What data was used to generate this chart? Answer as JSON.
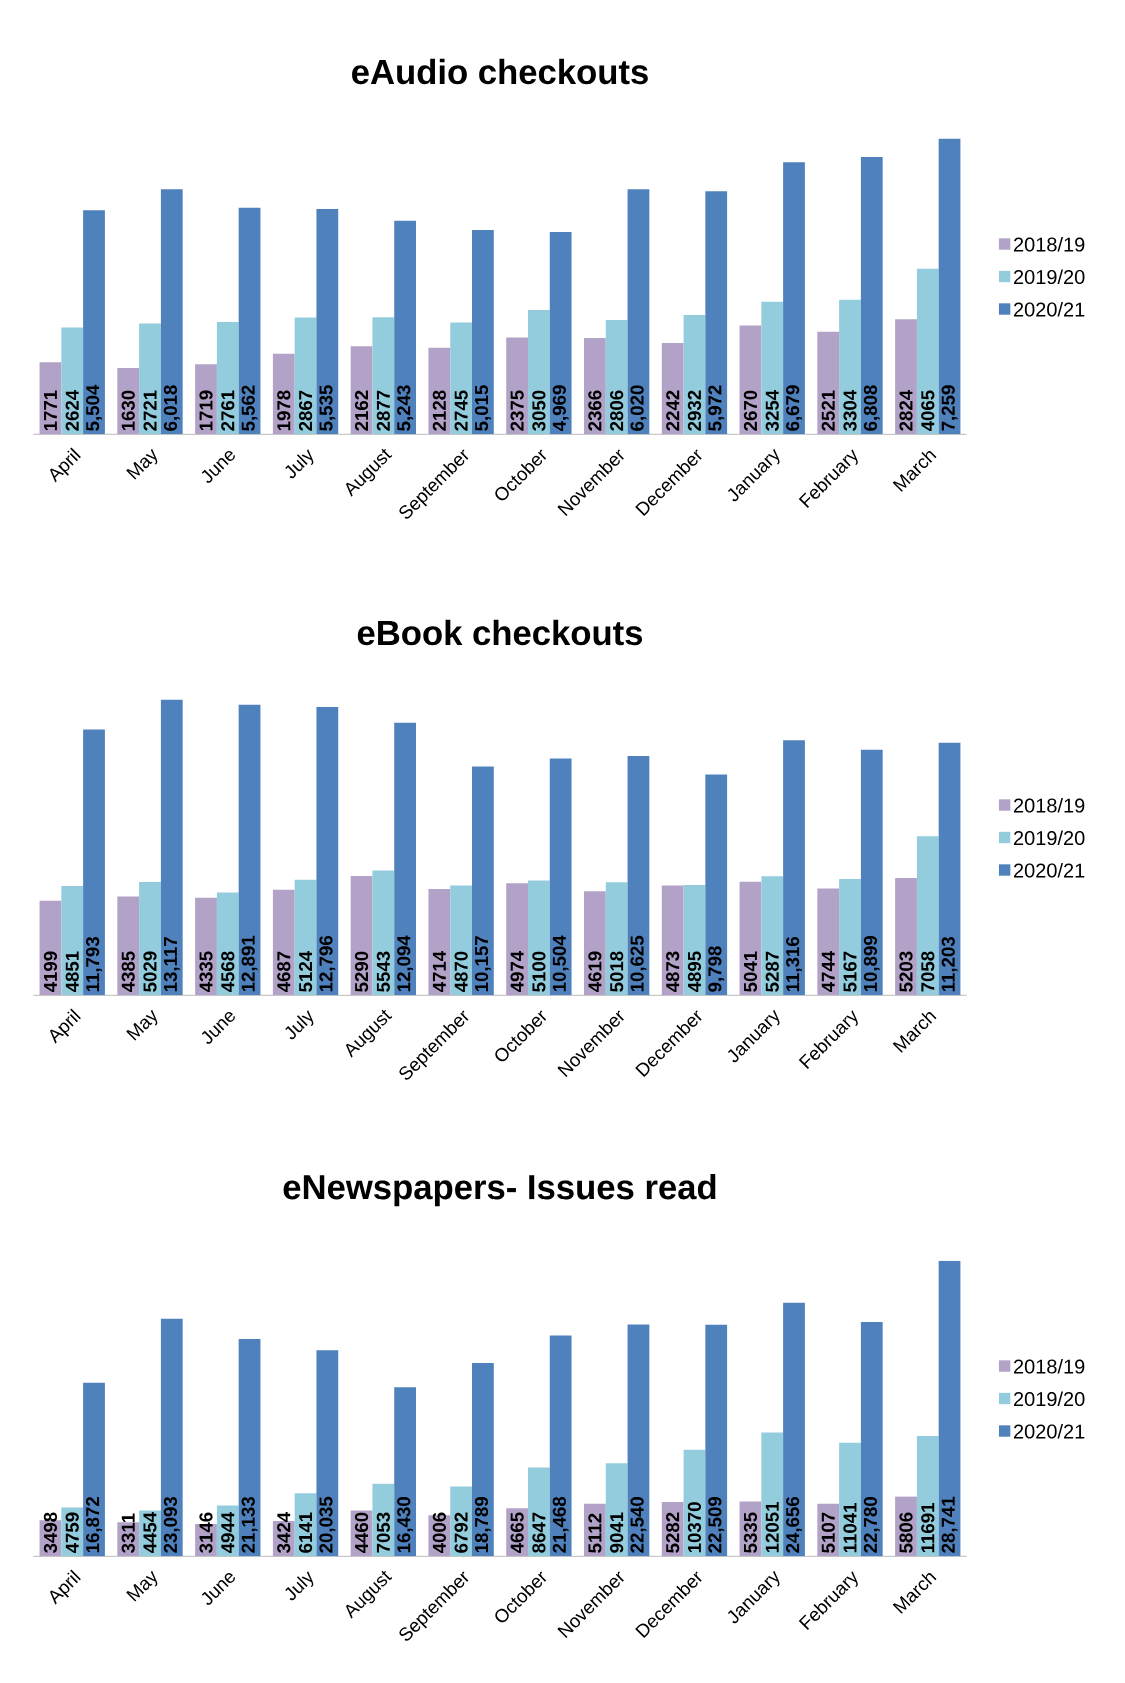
{
  "chart_data": [
    {
      "type": "bar",
      "title": "eAudio checkouts",
      "legend": "right",
      "tick_labels": "x",
      "categories": [
        "April",
        "May",
        "June",
        "July",
        "August",
        "September",
        "October",
        "November",
        "December",
        "January",
        "February",
        "March"
      ],
      "series": [
        {
          "name": "2018/19",
          "color": "#b3a2c7",
          "values": [
            1771,
            1630,
            1719,
            1978,
            2162,
            2128,
            2375,
            2366,
            2242,
            2670,
            2521,
            2824
          ],
          "value_labels": [
            "1771",
            "1630",
            "1719",
            "1978",
            "2162",
            "2128",
            "2375",
            "2366",
            "2242",
            "2670",
            "2521",
            "2824"
          ]
        },
        {
          "name": "2019/20",
          "color": "#93cddd",
          "values": [
            2624,
            2721,
            2761,
            2867,
            2877,
            2745,
            3050,
            2806,
            2932,
            3254,
            3304,
            4065
          ],
          "value_labels": [
            "2624",
            "2721",
            "2761",
            "2867",
            "2877",
            "2745",
            "3050",
            "2806",
            "2932",
            "3254",
            "3304",
            "4065"
          ]
        },
        {
          "name": "2020/21",
          "color": "#4f81bd",
          "values": [
            5504,
            6018,
            5562,
            5535,
            5243,
            5015,
            4969,
            6020,
            5972,
            6679,
            6808,
            7259
          ],
          "value_labels": [
            "5,504",
            "6,018",
            "5,562",
            "5,535",
            "5,243",
            "5,015",
            "4,969",
            "6,020",
            "5,972",
            "6,679",
            "6,808",
            "7,259"
          ]
        }
      ]
    },
    {
      "type": "bar",
      "title": "eBook checkouts",
      "legend": "right",
      "tick_labels": "x",
      "categories": [
        "April",
        "May",
        "June",
        "July",
        "August",
        "September",
        "October",
        "November",
        "December",
        "January",
        "February",
        "March"
      ],
      "series": [
        {
          "name": "2018/19",
          "color": "#b3a2c7",
          "values": [
            4199,
            4385,
            4335,
            4687,
            5290,
            4714,
            4974,
            4619,
            4873,
            5041,
            4744,
            5203
          ],
          "value_labels": [
            "4199",
            "4385",
            "4335",
            "4687",
            "5290",
            "4714",
            "4974",
            "4619",
            "4873",
            "5041",
            "4744",
            "5203"
          ]
        },
        {
          "name": "2019/20",
          "color": "#93cddd",
          "values": [
            4851,
            5029,
            4568,
            5124,
            5543,
            4870,
            5100,
            5018,
            4895,
            5287,
            5167,
            7058
          ],
          "value_labels": [
            "4851",
            "5029",
            "4568",
            "5124",
            "5543",
            "4870",
            "5100",
            "5018",
            "4895",
            "5287",
            "5167",
            "7058"
          ]
        },
        {
          "name": "2020/21",
          "color": "#4f81bd",
          "values": [
            11793,
            13117,
            12891,
            12796,
            12094,
            10157,
            10504,
            10625,
            9798,
            11316,
            10899,
            11203
          ],
          "value_labels": [
            "11,793",
            "13,117",
            "12,891",
            "12,796",
            "12,094",
            "10,157",
            "10,504",
            "10,625",
            "9,798",
            "11,316",
            "10,899",
            "11,203"
          ]
        }
      ]
    },
    {
      "type": "bar",
      "title": "eNewspapers- Issues read",
      "legend": "right",
      "tick_labels": "x",
      "categories": [
        "April",
        "May",
        "June",
        "July",
        "August",
        "September",
        "October",
        "November",
        "December",
        "January",
        "February",
        "March"
      ],
      "series": [
        {
          "name": "2018/19",
          "color": "#b3a2c7",
          "values": [
            3498,
            3311,
            3146,
            3424,
            4460,
            4006,
            4665,
            5112,
            5282,
            5335,
            5107,
            5806
          ],
          "value_labels": [
            "3498",
            "3311",
            "3146",
            "3424",
            "4460",
            "4006",
            "4665",
            "5112",
            "5282",
            "5335",
            "5107",
            "5806"
          ]
        },
        {
          "name": "2019/20",
          "color": "#93cddd",
          "values": [
            4759,
            4454,
            4944,
            6141,
            7053,
            6792,
            8647,
            9041,
            10370,
            12051,
            11041,
            11691
          ],
          "value_labels": [
            "4759",
            "4454",
            "4944",
            "6141",
            "7053",
            "6792",
            "8647",
            "9041",
            "10370",
            "12051",
            "11041",
            "11691"
          ]
        },
        {
          "name": "2020/21",
          "color": "#4f81bd",
          "values": [
            16872,
            23093,
            21133,
            20035,
            16430,
            18789,
            21468,
            22540,
            22509,
            24656,
            22780,
            28741
          ],
          "value_labels": [
            "16,872",
            "23,093",
            "21,133",
            "20,035",
            "16,430",
            "18,789",
            "21,468",
            "22,540",
            "22,509",
            "24,656",
            "22,780",
            "28,741"
          ]
        }
      ]
    }
  ]
}
